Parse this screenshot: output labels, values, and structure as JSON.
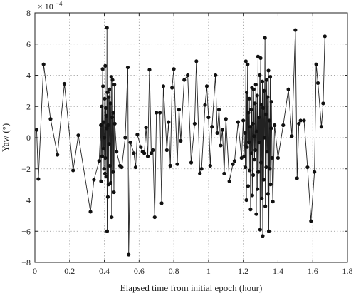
{
  "chart_data": {
    "type": "line",
    "xlabel": "Elapsed time from initial epoch (hour)",
    "ylabel": "Yaw (°)",
    "y_exponent_label": "× 10",
    "y_exponent_power": "−4",
    "xlim": [
      0,
      1.8
    ],
    "ylim": [
      -8,
      8
    ],
    "x_ticks": [
      0,
      0.2,
      0.4,
      0.6,
      0.8,
      1,
      1.2,
      1.4,
      1.6,
      1.8
    ],
    "x_tick_labels": [
      "0",
      "0.2",
      "0.4",
      "0.6",
      "0.8",
      "1",
      "1.2",
      "1.4",
      "1.6",
      "1.8"
    ],
    "y_ticks": [
      -8,
      -6,
      -4,
      -2,
      0,
      2,
      4,
      6,
      8
    ],
    "y_tick_labels": [
      "−8",
      "−6",
      "−4",
      "−2",
      "0",
      "2",
      "4",
      "6",
      "8"
    ],
    "grid": true,
    "series": [
      {
        "line_color": "#222222",
        "marker_color": "#111111",
        "points": [
          [
            0.01,
            0.5
          ],
          [
            0.02,
            -2.65
          ],
          [
            0.05,
            4.7
          ],
          [
            0.09,
            1.2
          ],
          [
            0.13,
            -1.1
          ],
          [
            0.17,
            3.45
          ],
          [
            0.22,
            -2.1
          ],
          [
            0.25,
            0.15
          ],
          [
            0.32,
            -4.75
          ],
          [
            0.34,
            -2.7
          ],
          [
            0.37,
            -1.5
          ],
          [
            0.38,
            0.8
          ],
          [
            0.381,
            -2.8
          ],
          [
            0.385,
            2.0
          ],
          [
            0.387,
            -1.2
          ],
          [
            0.39,
            4.4
          ],
          [
            0.392,
            3.3
          ],
          [
            0.395,
            -0.7
          ],
          [
            0.396,
            1.0
          ],
          [
            0.398,
            -2.0
          ],
          [
            0.4,
            0.0
          ],
          [
            0.402,
            2.5
          ],
          [
            0.404,
            -2.3
          ],
          [
            0.405,
            4.6
          ],
          [
            0.406,
            -1.3
          ],
          [
            0.408,
            1.9
          ],
          [
            0.41,
            -2.5
          ],
          [
            0.412,
            1.4
          ],
          [
            0.414,
            0.6
          ],
          [
            0.415,
            7.05
          ],
          [
            0.416,
            -6.0
          ],
          [
            0.418,
            2.9
          ],
          [
            0.42,
            -3.8
          ],
          [
            0.422,
            0.8
          ],
          [
            0.424,
            -3.0
          ],
          [
            0.425,
            2.6
          ],
          [
            0.427,
            -0.4
          ],
          [
            0.43,
            3.1
          ],
          [
            0.432,
            -1.8
          ],
          [
            0.435,
            2.2
          ],
          [
            0.437,
            -2.9
          ],
          [
            0.44,
            3.9
          ],
          [
            0.442,
            -5.1
          ],
          [
            0.445,
            1.3
          ],
          [
            0.447,
            3.7
          ],
          [
            0.45,
            -2.2
          ],
          [
            0.452,
            1.6
          ],
          [
            0.455,
            -3.5
          ],
          [
            0.458,
            3.4
          ],
          [
            0.46,
            0.9
          ],
          [
            0.47,
            -0.9
          ],
          [
            0.49,
            -1.8
          ],
          [
            0.5,
            -1.9
          ],
          [
            0.52,
            0.0
          ],
          [
            0.535,
            4.5
          ],
          [
            0.54,
            -7.5
          ],
          [
            0.55,
            -0.3
          ],
          [
            0.57,
            -1.0
          ],
          [
            0.58,
            -1.9
          ],
          [
            0.59,
            0.2
          ],
          [
            0.61,
            -0.6
          ],
          [
            0.62,
            -0.9
          ],
          [
            0.63,
            -1.0
          ],
          [
            0.64,
            0.65
          ],
          [
            0.65,
            -1.2
          ],
          [
            0.66,
            4.35
          ],
          [
            0.67,
            -1.0
          ],
          [
            0.68,
            -0.8
          ],
          [
            0.69,
            -5.1
          ],
          [
            0.7,
            1.6
          ],
          [
            0.72,
            1.6
          ],
          [
            0.73,
            -4.2
          ],
          [
            0.74,
            3.3
          ],
          [
            0.76,
            -0.8
          ],
          [
            0.77,
            1.0
          ],
          [
            0.78,
            -1.8
          ],
          [
            0.79,
            3.2
          ],
          [
            0.8,
            4.4
          ],
          [
            0.82,
            -1.7
          ],
          [
            0.83,
            1.8
          ],
          [
            0.84,
            -0.2
          ],
          [
            0.86,
            3.7
          ],
          [
            0.88,
            4.0
          ],
          [
            0.9,
            -1.6
          ],
          [
            0.92,
            0.9
          ],
          [
            0.93,
            4.9
          ],
          [
            0.95,
            -2.3
          ],
          [
            0.96,
            -2.0
          ],
          [
            0.98,
            2.1
          ],
          [
            0.99,
            3.3
          ],
          [
            1.0,
            1.3
          ],
          [
            1.01,
            -1.8
          ],
          [
            1.02,
            0.7
          ],
          [
            1.04,
            4.0
          ],
          [
            1.05,
            0.3
          ],
          [
            1.06,
            1.8
          ],
          [
            1.07,
            -0.5
          ],
          [
            1.08,
            0.5
          ],
          [
            1.09,
            -2.3
          ],
          [
            1.1,
            1.2
          ],
          [
            1.12,
            -2.8
          ],
          [
            1.14,
            -1.7
          ],
          [
            1.15,
            -1.5
          ],
          [
            1.17,
            1.0
          ],
          [
            1.19,
            -1.3
          ],
          [
            1.2,
            1.1
          ],
          [
            1.205,
            -1.2
          ],
          [
            1.21,
            0.3
          ],
          [
            1.212,
            -1.9
          ],
          [
            1.215,
            4.9
          ],
          [
            1.218,
            -4.0
          ],
          [
            1.22,
            2.9
          ],
          [
            1.222,
            -0.6
          ],
          [
            1.225,
            4.7
          ],
          [
            1.228,
            -3.1
          ],
          [
            1.23,
            1.6
          ],
          [
            1.233,
            -0.3
          ],
          [
            1.235,
            2.5
          ],
          [
            1.237,
            -2.1
          ],
          [
            1.24,
            0.7
          ],
          [
            1.242,
            -4.6
          ],
          [
            1.245,
            1.8
          ],
          [
            1.247,
            -1.0
          ],
          [
            1.25,
            3.2
          ],
          [
            1.252,
            -3.7
          ],
          [
            1.255,
            0.9
          ],
          [
            1.257,
            -2.4
          ],
          [
            1.26,
            3.1
          ],
          [
            1.262,
            0.1
          ],
          [
            1.265,
            -1.4
          ],
          [
            1.267,
            2.2
          ],
          [
            1.27,
            -0.8
          ],
          [
            1.272,
            3.4
          ],
          [
            1.275,
            -4.9
          ],
          [
            1.277,
            0.4
          ],
          [
            1.28,
            2.7
          ],
          [
            1.282,
            -3.3
          ],
          [
            1.285,
            5.2
          ],
          [
            1.287,
            -2.2
          ],
          [
            1.29,
            1.3
          ],
          [
            1.292,
            -0.3
          ],
          [
            1.295,
            4.0
          ],
          [
            1.297,
            -5.9
          ],
          [
            1.3,
            5.1
          ],
          [
            1.302,
            -1.6
          ],
          [
            1.305,
            2.1
          ],
          [
            1.307,
            -3.9
          ],
          [
            1.31,
            3.6
          ],
          [
            1.312,
            -6.3
          ],
          [
            1.315,
            1.9
          ],
          [
            1.317,
            -2.7
          ],
          [
            1.32,
            3.0
          ],
          [
            1.322,
            0.0
          ],
          [
            1.325,
            6.4
          ],
          [
            1.327,
            -4.4
          ],
          [
            1.33,
            1.5
          ],
          [
            1.332,
            -1.9
          ],
          [
            1.335,
            3.7
          ],
          [
            1.337,
            -0.9
          ],
          [
            1.34,
            2.6
          ],
          [
            1.342,
            -3.6
          ],
          [
            1.345,
            4.3
          ],
          [
            1.347,
            -6.0
          ],
          [
            1.35,
            1.1
          ],
          [
            1.352,
            -2.0
          ],
          [
            1.355,
            3.9
          ],
          [
            1.357,
            -3.0
          ],
          [
            1.36,
            0.6
          ],
          [
            1.362,
            2.3
          ],
          [
            1.365,
            -1.3
          ],
          [
            1.37,
            -4.1
          ],
          [
            1.38,
            0.8
          ],
          [
            1.4,
            -1.3
          ],
          [
            1.43,
            0.8
          ],
          [
            1.46,
            3.1
          ],
          [
            1.48,
            0.1
          ],
          [
            1.5,
            6.9
          ],
          [
            1.51,
            -2.6
          ],
          [
            1.52,
            0.9
          ],
          [
            1.53,
            1.1
          ],
          [
            1.55,
            1.1
          ],
          [
            1.57,
            -1.9
          ],
          [
            1.59,
            -5.35
          ],
          [
            1.61,
            -2.2
          ],
          [
            1.62,
            4.7
          ],
          [
            1.63,
            3.5
          ],
          [
            1.65,
            0.7
          ],
          [
            1.66,
            2.2
          ],
          [
            1.67,
            6.5
          ]
        ]
      }
    ]
  }
}
